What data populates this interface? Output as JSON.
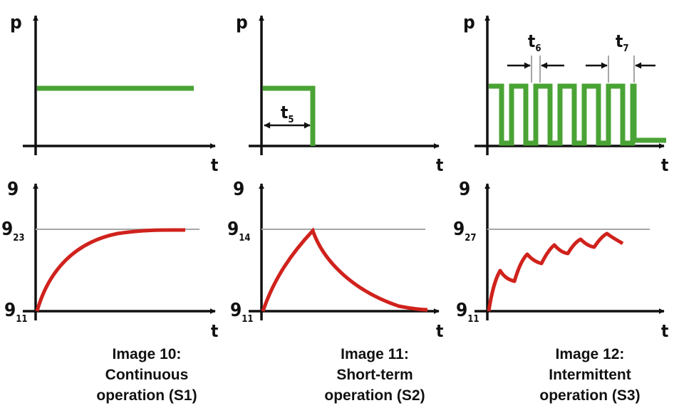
{
  "colors": {
    "axis": "#111111",
    "power_line": "#4aa335",
    "temperature_curve": "#d0221c",
    "reference_line": "#a6a6a6"
  },
  "labels": {
    "power_axis": "p",
    "time_axis": "t",
    "temp_axis": "9",
    "t5_main": "t",
    "t5_sub": "5",
    "t6_main": "t",
    "t6_sub": "6",
    "t7_main": "t",
    "t7_sub": "7",
    "s1_temp_end_main": "9",
    "s1_temp_end_sub": "23",
    "s2_temp_end_main": "9",
    "s2_temp_end_sub": "14",
    "s3_temp_end_main": "9",
    "s3_temp_end_sub": "27",
    "temp_start_main": "9",
    "temp_start_sub": "11"
  },
  "captions": [
    {
      "line1": "Image 10:",
      "line2": "Continuous",
      "line3": "operation (S1)"
    },
    {
      "line1": "Image 11:",
      "line2": "Short-term",
      "line3": "operation (S2)"
    },
    {
      "line1": "Image 12:",
      "line2": "Intermittent",
      "line3": "operation (S3)"
    }
  ]
}
